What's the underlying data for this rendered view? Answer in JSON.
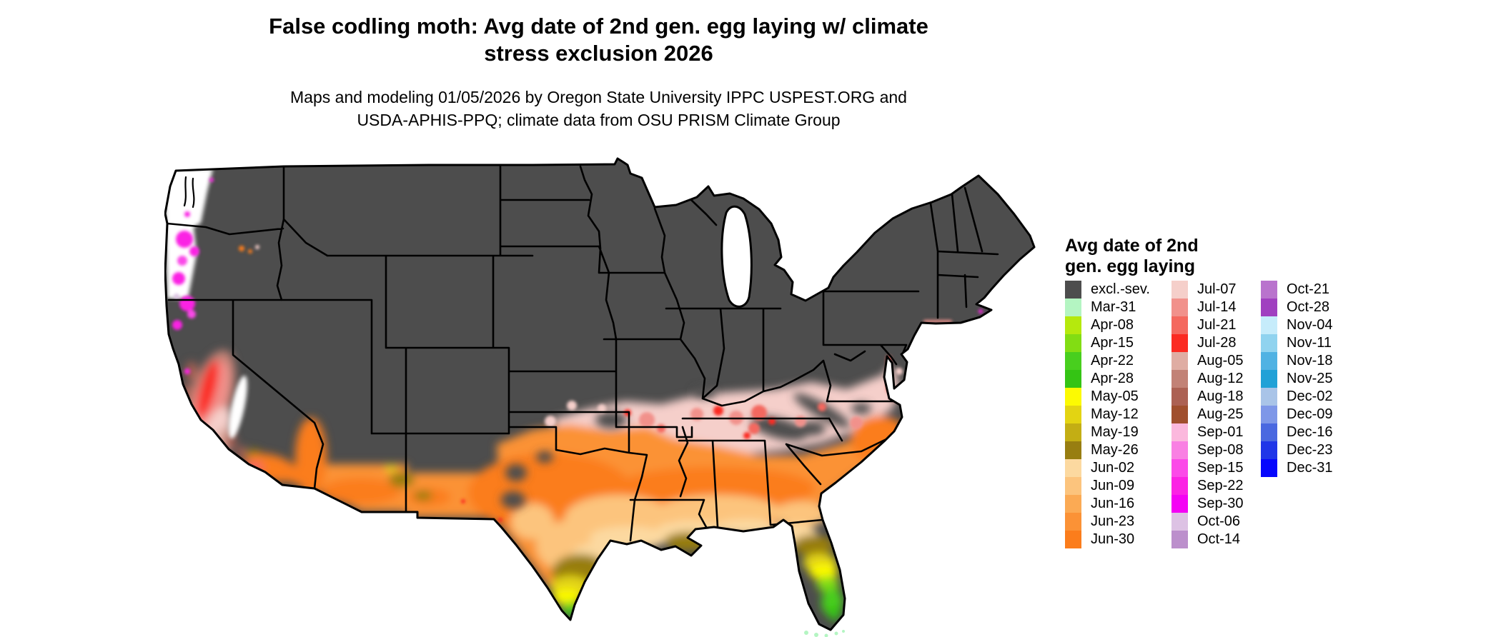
{
  "title": {
    "line1": "False codling moth: Avg date of 2nd gen. egg laying w/ climate",
    "line2": "stress exclusion 2026"
  },
  "subtitle": {
    "line1": "Maps and modeling 01/05/2026 by Oregon State University IPPC USPEST.ORG and",
    "line2": "USDA-APHIS-PPQ; climate data from OSU PRISM Climate Group"
  },
  "legend": {
    "title_line1": "Avg date of 2nd",
    "title_line2": "gen. egg laying",
    "columns": [
      [
        {
          "label": "excl.-sev.",
          "color": "#4d4d4d"
        },
        {
          "label": "Mar-31",
          "color": "#b4f5c2"
        },
        {
          "label": "Apr-08",
          "color": "#b5e90d"
        },
        {
          "label": "Apr-15",
          "color": "#82dd13"
        },
        {
          "label": "Apr-22",
          "color": "#48cf1e"
        },
        {
          "label": "Apr-28",
          "color": "#34c414"
        },
        {
          "label": "May-05",
          "color": "#fcfa02"
        },
        {
          "label": "May-12",
          "color": "#e3d412"
        },
        {
          "label": "May-19",
          "color": "#c3ae14"
        },
        {
          "label": "May-26",
          "color": "#987e11"
        },
        {
          "label": "Jun-02",
          "color": "#fcd9a0"
        },
        {
          "label": "Jun-09",
          "color": "#fcc47d"
        },
        {
          "label": "Jun-16",
          "color": "#fbaa54"
        },
        {
          "label": "Jun-23",
          "color": "#fb9236"
        },
        {
          "label": "Jun-30",
          "color": "#fb7d1c"
        }
      ],
      [
        {
          "label": "Jul-07",
          "color": "#f5cfca"
        },
        {
          "label": "Jul-14",
          "color": "#f1918b"
        },
        {
          "label": "Jul-21",
          "color": "#f4685e"
        },
        {
          "label": "Jul-28",
          "color": "#fb2b22"
        },
        {
          "label": "Aug-05",
          "color": "#dfada3"
        },
        {
          "label": "Aug-12",
          "color": "#c28276"
        },
        {
          "label": "Aug-18",
          "color": "#ac6153"
        },
        {
          "label": "Aug-25",
          "color": "#a04f2e"
        },
        {
          "label": "Sep-01",
          "color": "#fbb8dd"
        },
        {
          "label": "Sep-08",
          "color": "#f980e3"
        },
        {
          "label": "Sep-15",
          "color": "#fb4ae8"
        },
        {
          "label": "Sep-22",
          "color": "#fb22e4"
        },
        {
          "label": "Sep-30",
          "color": "#f402f4"
        },
        {
          "label": "Oct-06",
          "color": "#ddc2e4"
        },
        {
          "label": "Oct-14",
          "color": "#bc8fcc"
        }
      ],
      [
        {
          "label": "Oct-21",
          "color": "#b973cd"
        },
        {
          "label": "Oct-28",
          "color": "#a040c0"
        },
        {
          "label": "Nov-04",
          "color": "#c6ecfb"
        },
        {
          "label": "Nov-11",
          "color": "#90d3ef"
        },
        {
          "label": "Nov-18",
          "color": "#50b2e3"
        },
        {
          "label": "Nov-25",
          "color": "#21a1d7"
        },
        {
          "label": "Dec-02",
          "color": "#a9c4e8"
        },
        {
          "label": "Dec-09",
          "color": "#7e97e8"
        },
        {
          "label": "Dec-16",
          "color": "#4a68e0"
        },
        {
          "label": "Dec-23",
          "color": "#2036e8"
        },
        {
          "label": "Dec-31",
          "color": "#0607fd"
        }
      ]
    ]
  },
  "map": {
    "region": "Contiguous United States",
    "excluded_label": "excl.-sev.",
    "palette": {
      "excl": "#4d4d4d",
      "nodata": "#ffffff",
      "water": "#ffffff",
      "outline": "#000000",
      "mar31": "#b4f5c2",
      "apr08": "#b5e90d",
      "apr15": "#82dd13",
      "apr22": "#48cf1e",
      "apr28": "#34c414",
      "may05": "#fcfa02",
      "may12": "#e3d412",
      "may19": "#c3ae14",
      "may26": "#987e11",
      "jun02": "#fcd9a0",
      "jun09": "#fcc47d",
      "jun16": "#fbaa54",
      "jun23": "#fb9236",
      "jun30": "#fb7d1c",
      "jul07": "#f5cfca",
      "jul14": "#f1918b",
      "jul21": "#f4685e",
      "jul28": "#fb2b22",
      "aug05": "#dfada3",
      "aug12": "#c28276",
      "aug18": "#ac6153",
      "aug25": "#a04f2e",
      "sep15": "#fb4ae8",
      "sep22": "#fb22e4",
      "oct06": "#ddc2e4"
    }
  }
}
